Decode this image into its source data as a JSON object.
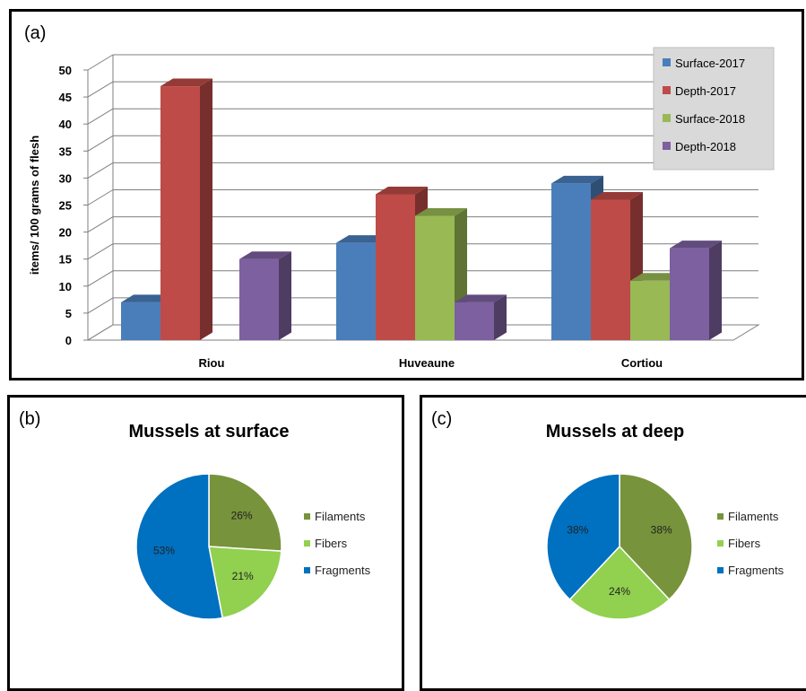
{
  "chart_data": [
    {
      "panel_label": "(a)",
      "type": "bar",
      "three_d": true,
      "ylabel": "items/ 100 grams of flesh",
      "ylim": [
        0,
        50
      ],
      "yticks": [
        "0",
        "5",
        "10",
        "15",
        "20",
        "25",
        "30",
        "35",
        "40",
        "45",
        "50"
      ],
      "grid": true,
      "legend_position": "top-right",
      "categories": [
        "Riou",
        "Huveaune",
        "Cortiou"
      ],
      "series": [
        {
          "name": "Surface-2017",
          "color": "#4a7ebb",
          "values": [
            7,
            18,
            29
          ]
        },
        {
          "name": "Depth-2017",
          "color": "#be4b48",
          "values": [
            47,
            27,
            26
          ]
        },
        {
          "name": "Surface-2018",
          "color": "#98b954",
          "values": [
            0,
            23,
            11
          ]
        },
        {
          "name": "Depth-2018",
          "color": "#7d60a0",
          "values": [
            15,
            7,
            17
          ]
        }
      ]
    },
    {
      "panel_label": "(b)",
      "type": "pie",
      "title": "Mussels at surface",
      "legend_position": "right",
      "slices": [
        {
          "name": "Filaments",
          "value": 26,
          "label": "26%",
          "color": "#77933c"
        },
        {
          "name": "Fibers",
          "value": 21,
          "label": "21%",
          "color": "#92d050"
        },
        {
          "name": "Fragments",
          "value": 53,
          "label": "53%",
          "color": "#0070c0"
        }
      ]
    },
    {
      "panel_label": "(c)",
      "type": "pie",
      "title": "Mussels at deep",
      "legend_position": "right",
      "slices": [
        {
          "name": "Filaments",
          "value": 38,
          "label": "38%",
          "color": "#77933c"
        },
        {
          "name": "Fibers",
          "value": 24,
          "label": "24%",
          "color": "#92d050"
        },
        {
          "name": "Fragments",
          "value": 38,
          "label": "38%",
          "color": "#0070c0"
        }
      ]
    }
  ]
}
